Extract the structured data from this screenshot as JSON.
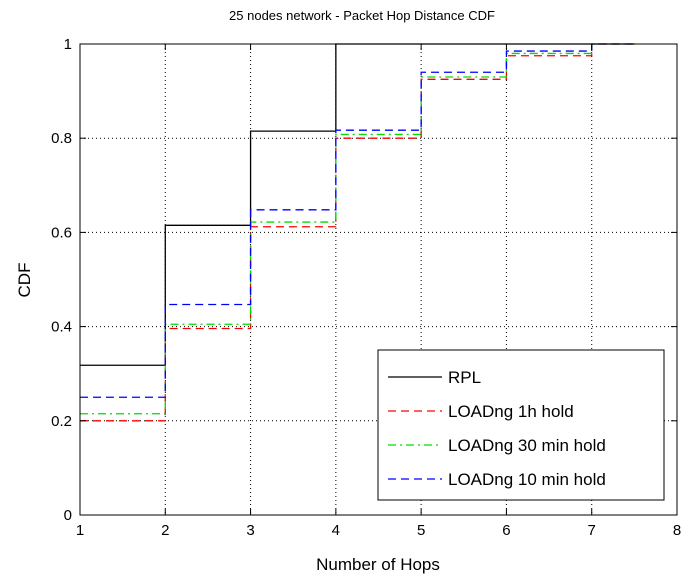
{
  "chart_data": {
    "type": "line",
    "step": true,
    "title": "25 nodes network - Packet Hop Distance CDF",
    "xlabel": "Number of Hops",
    "ylabel": "CDF",
    "xlim": [
      1,
      8
    ],
    "ylim": [
      0,
      1
    ],
    "xticks": [
      1,
      2,
      3,
      4,
      5,
      6,
      7,
      8
    ],
    "yticks": [
      0,
      0.2,
      0.4,
      0.6,
      0.8,
      1
    ],
    "xtick_labels": [
      "1",
      "2",
      "3",
      "4",
      "5",
      "6",
      "7",
      "8"
    ],
    "ytick_labels": [
      "0",
      "0.2",
      "0.4",
      "0.6",
      "0.8",
      "1"
    ],
    "grid": true,
    "legend_position": "bottom-right",
    "series": [
      {
        "name": "RPL",
        "color": "#000000",
        "dash": "solid",
        "x": [
          1,
          2,
          3,
          4,
          5,
          6,
          7,
          7.5
        ],
        "y": [
          0.318,
          0.615,
          0.815,
          1.0,
          1.0,
          1.0,
          1.0,
          1.0
        ]
      },
      {
        "name": "LOADng 1h hold",
        "color": "#ff0000",
        "dash": "dashed",
        "x": [
          1,
          2,
          3,
          4,
          5,
          6,
          7,
          7.5
        ],
        "y": [
          0.2,
          0.396,
          0.612,
          0.8,
          0.925,
          0.975,
          1.0,
          1.0
        ]
      },
      {
        "name": "LOADng 30 min hold",
        "color": "#00dd00",
        "dash": "dashdot",
        "x": [
          1,
          2,
          3,
          4,
          5,
          6,
          7,
          7.5
        ],
        "y": [
          0.215,
          0.405,
          0.622,
          0.808,
          0.93,
          0.98,
          1.0,
          1.0
        ]
      },
      {
        "name": "LOADng 10 min hold",
        "color": "#0000ff",
        "dash": "dashed",
        "x": [
          1,
          2,
          3,
          4,
          5,
          6,
          7,
          7.5
        ],
        "y": [
          0.25,
          0.447,
          0.648,
          0.817,
          0.94,
          0.985,
          1.0,
          1.0
        ]
      }
    ]
  }
}
